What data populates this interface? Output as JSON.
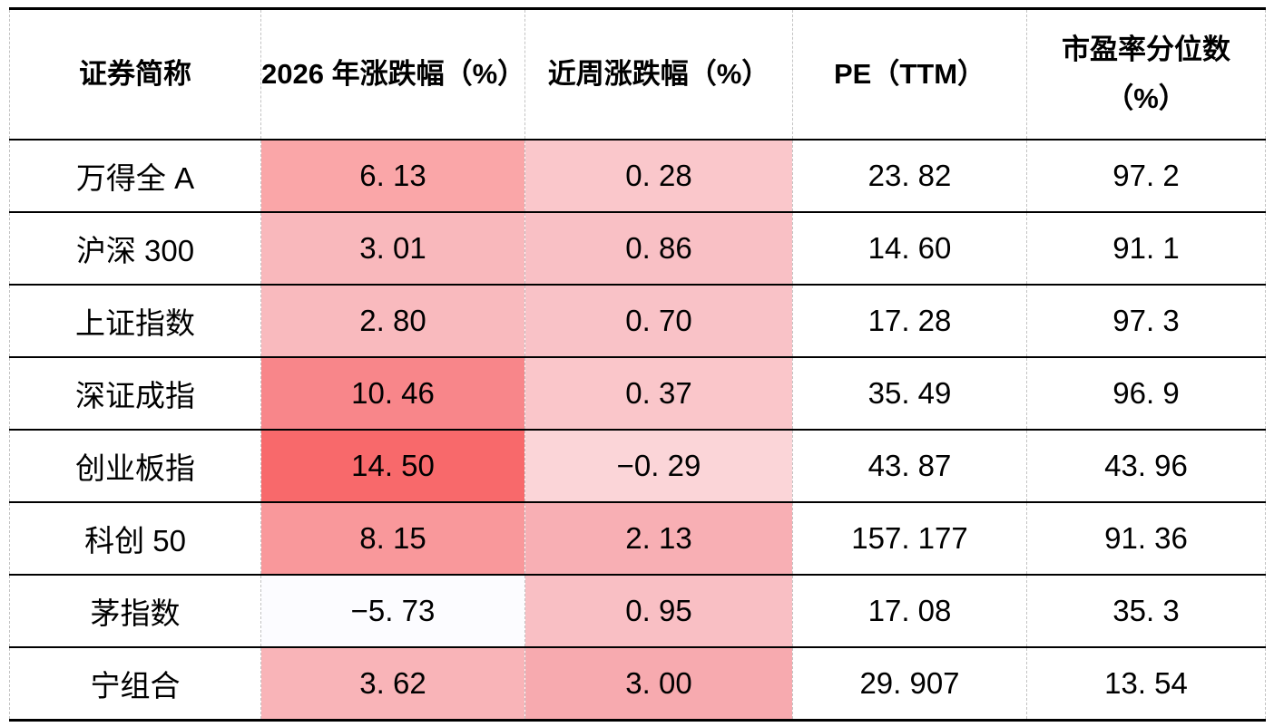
{
  "table": {
    "headers": {
      "security": "证券简称",
      "ytd_change": "2026 年涨跌幅（%）",
      "week_change": "近周涨跌幅（%）",
      "pe_ttm": "PE（TTM）",
      "pe_percentile_line1": "市盈率分位数",
      "pe_percentile_line2": "（%）"
    },
    "heat_scale": {
      "min_color": "#FCFCFF",
      "max_color": "#F8696B"
    },
    "rows": [
      {
        "name": "万得全 A",
        "ytd": "6. 13",
        "ytd_bg": "#FAA6A8",
        "week": "0. 28",
        "week_bg": "#FAC7CB",
        "pe": "23. 82",
        "percentile": "97. 2"
      },
      {
        "name": "沪深 300",
        "ytd": "3. 01",
        "ytd_bg": "#F9B8BC",
        "week": "0. 86",
        "week_bg": "#F9C0C5",
        "pe": "14. 60",
        "percentile": "91. 1"
      },
      {
        "name": "上证指数",
        "ytd": "2. 80",
        "ytd_bg": "#F9BABE",
        "week": "0. 70",
        "week_bg": "#F9C2C7",
        "pe": "17. 28",
        "percentile": "97. 3"
      },
      {
        "name": "深证成指",
        "ytd": "10. 46",
        "ytd_bg": "#F8868A",
        "week": "0. 37",
        "week_bg": "#FAC6CA",
        "pe": "35. 49",
        "percentile": "96. 9"
      },
      {
        "name": "创业板指",
        "ytd": "14. 50",
        "ytd_bg": "#F8696B",
        "week": "−0. 29",
        "week_bg": "#FBD5D8",
        "pe": "43. 87",
        "percentile": "43. 96"
      },
      {
        "name": "科创 50",
        "ytd": "8. 15",
        "ytd_bg": "#F9989B",
        "week": "2. 13",
        "week_bg": "#F8AFB4",
        "pe": "157. 177",
        "percentile": "91. 36"
      },
      {
        "name": "茅指数",
        "ytd": "−5. 73",
        "ytd_bg": "#FCFCFF",
        "week": "0. 95",
        "week_bg": "#F9BFC4",
        "pe": "17. 08",
        "percentile": "35. 3"
      },
      {
        "name": "宁组合",
        "ytd": "3. 62",
        "ytd_bg": "#F9B4B8",
        "week": "3. 00",
        "week_bg": "#F7AAAF",
        "pe": "29. 907",
        "percentile": "13. 54"
      }
    ]
  }
}
